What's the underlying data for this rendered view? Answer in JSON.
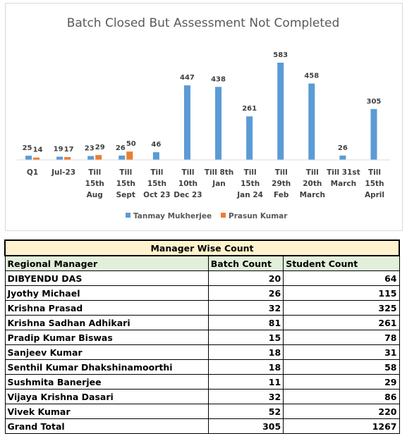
{
  "chart_data": {
    "type": "bar",
    "title": "Batch Closed But Assessment Not Completed",
    "categories": [
      [
        "Q1"
      ],
      [
        "Jul-23"
      ],
      [
        "Till",
        "15th",
        "Aug"
      ],
      [
        "Till",
        "15th",
        "Sept"
      ],
      [
        "Till",
        "15th",
        "Oct 23"
      ],
      [
        "Till",
        "10th",
        "Dec 23"
      ],
      [
        "Till 8th",
        "Jan"
      ],
      [
        "Till",
        "15th",
        "Jan 24"
      ],
      [
        "Till",
        "29th",
        "Feb"
      ],
      [
        "Till",
        "20th",
        "March"
      ],
      [
        "Till 31st",
        "March"
      ],
      [
        "Till",
        "15th",
        "April"
      ]
    ],
    "series": [
      {
        "name": "Tanmay Mukherjee",
        "color": "#5b9bd5",
        "values": [
          25,
          19,
          23,
          26,
          46,
          447,
          438,
          261,
          583,
          458,
          26,
          305
        ]
      },
      {
        "name": "Prasun Kumar",
        "color": "#ed7d31",
        "values": [
          14,
          17,
          29,
          50,
          null,
          null,
          null,
          null,
          null,
          null,
          null,
          null
        ]
      }
    ],
    "ylim": [
      0,
      620
    ],
    "grid": false,
    "legend": "bottom",
    "data_labels": true
  },
  "table": {
    "title": "Manager Wise Count",
    "headers": [
      "Regional Manager",
      "Batch Count",
      "Student Count"
    ],
    "rows": [
      [
        "DIBYENDU DAS",
        "20",
        "64"
      ],
      [
        "Jyothy Michael",
        "26",
        "115"
      ],
      [
        "Krishna Prasad",
        "32",
        "325"
      ],
      [
        "Krishna Sadhan Adhikari",
        "81",
        "261"
      ],
      [
        "Pradip Kumar Biswas",
        "15",
        "78"
      ],
      [
        "Sanjeev Kumar",
        "18",
        "31"
      ],
      [
        "Senthil Kumar Dhakshinamoorthi",
        "18",
        "58"
      ],
      [
        "Sushmita Banerjee",
        "11",
        "29"
      ],
      [
        "Vijaya Krishna Dasari",
        "32",
        "86"
      ],
      [
        "Vivek Kumar",
        "52",
        "220"
      ]
    ],
    "total": [
      "Grand Total",
      "305",
      "1267"
    ]
  }
}
